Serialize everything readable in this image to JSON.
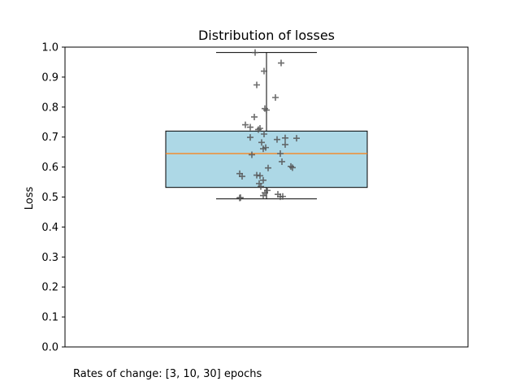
{
  "chart_data": {
    "type": "box",
    "title": "Distribution of losses",
    "ylabel": "Loss",
    "xlabel": "",
    "ylim": [
      0.0,
      1.0
    ],
    "yticks": [
      0.0,
      0.1,
      0.2,
      0.3,
      0.4,
      0.5,
      0.6,
      0.7,
      0.8,
      0.9,
      1.0
    ],
    "ytick_labels": [
      "0.0",
      "0.1",
      "0.2",
      "0.3",
      "0.4",
      "0.5",
      "0.6",
      "0.7",
      "0.8",
      "0.9",
      "1.0"
    ],
    "grid": false,
    "box": {
      "whisker_low": 0.494,
      "q1": 0.532,
      "median": 0.645,
      "q3": 0.72,
      "whisker_high": 0.982,
      "box_color": "#add8e6",
      "median_color": "#ff7f0e"
    },
    "points": [
      0.982,
      0.947,
      0.92,
      0.874,
      0.832,
      0.795,
      0.79,
      0.767,
      0.741,
      0.733,
      0.729,
      0.725,
      0.71,
      0.699,
      0.696,
      0.697,
      0.692,
      0.682,
      0.675,
      0.665,
      0.661,
      0.645,
      0.641,
      0.618,
      0.602,
      0.598,
      0.597,
      0.578,
      0.573,
      0.571,
      0.569,
      0.556,
      0.545,
      0.535,
      0.522,
      0.514,
      0.509,
      0.505,
      0.502,
      0.501,
      0.498,
      0.497
    ],
    "point_color": "#555555"
  },
  "footer": {
    "note": "Rates of change: [3, 10, 30] epochs"
  }
}
